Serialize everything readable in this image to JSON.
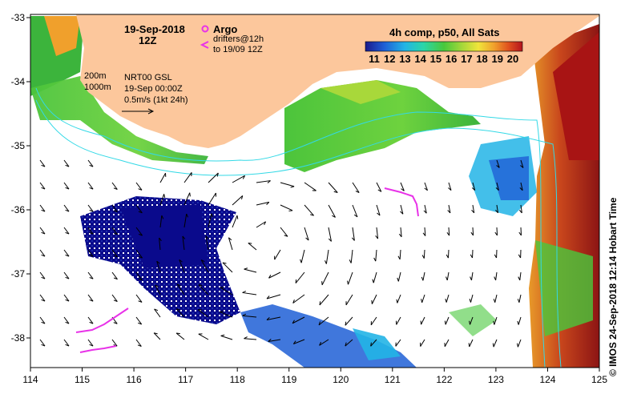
{
  "map": {
    "date_line1": "19-Sep-2018",
    "date_line2": "12Z",
    "argo_label": "Argo",
    "drifters_line1": "drifters@12h",
    "drifters_line2": "to 19/09 12Z",
    "colorbar_title": "4h comp, p50, All Sats",
    "colorbar_ticks": [
      "11",
      "12",
      "13",
      "14",
      "15",
      "16",
      "17",
      "18",
      "19",
      "20"
    ],
    "contour_200": "200m",
    "contour_1000": "1000m",
    "product_line1": "NRT00 GSL",
    "product_line2": "19-Sep 00:00Z",
    "product_line3": "0.5m/s (1kt 24h)",
    "credit": "© IMOS 24-Sep-2018 12:14 Hobart Time",
    "x_ticks": [
      "114",
      "115",
      "116",
      "117",
      "118",
      "119",
      "120",
      "121",
      "122",
      "123",
      "124",
      "125"
    ],
    "y_ticks": [
      "-33",
      "-34",
      "-35",
      "-36",
      "-37",
      "-38"
    ],
    "colors": {
      "land": "#fcc79c",
      "argo": "#e832e8",
      "contour": "#33d9e6",
      "sst_cold": "#0a0a8c",
      "sst_mid": "#3cc83c",
      "sst_warm": "#b4141e"
    }
  }
}
